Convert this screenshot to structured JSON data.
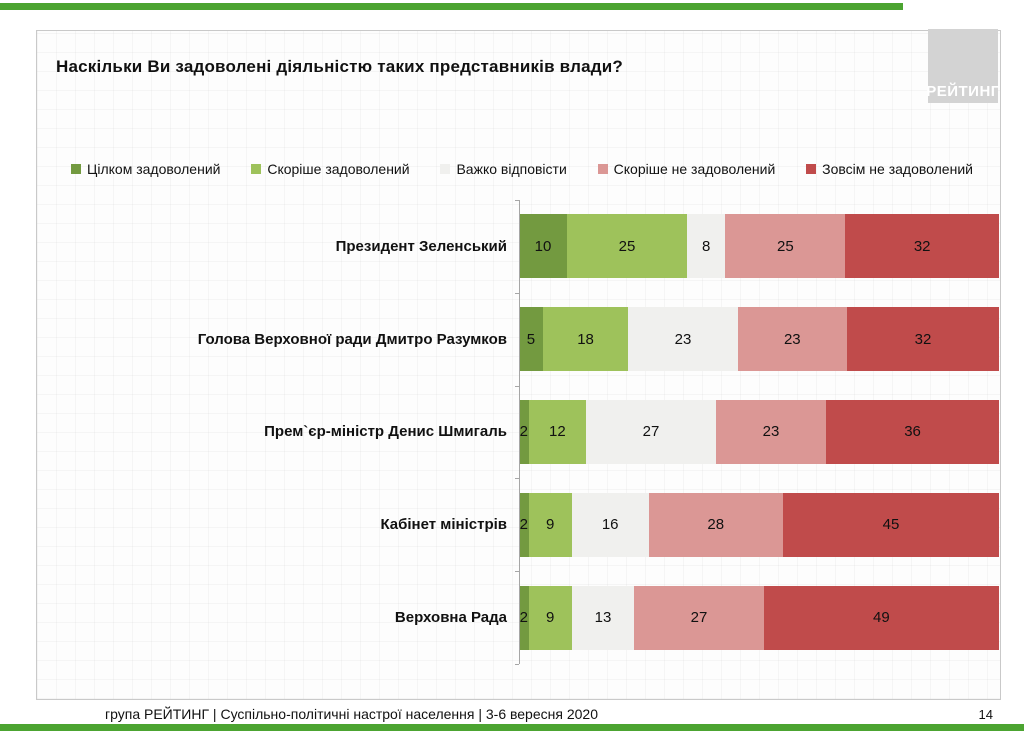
{
  "accent_color": "#4CA431",
  "logo": {
    "label": "РЕЙТИНГ",
    "bg": "#d3d3d3",
    "text_color": "#ffffff"
  },
  "title": "Наскільки Ви задоволені діяльністю таких представників влади?",
  "chart_data": {
    "type": "bar",
    "orientation": "horizontal",
    "stacked": true,
    "title": "Наскільки Ви задоволені діяльністю таких представників влади?",
    "legend_position": "top",
    "xlim": [
      0,
      100
    ],
    "value_labels": true,
    "categories": [
      "Президент Зеленський",
      "Голова Верховної ради Дмитро Разумков",
      "Прем`єр-міністр Денис Шмигаль",
      "Кабінет міністрів",
      "Верховна Рада"
    ],
    "series": [
      {
        "name": "Цілком задоволений",
        "color": "#739A40",
        "values": [
          10,
          5,
          2,
          2,
          2
        ]
      },
      {
        "name": "Скоріше задоволений",
        "color": "#9EC25B",
        "values": [
          25,
          18,
          12,
          9,
          9
        ]
      },
      {
        "name": "Важко відповісти",
        "color": "#F0F0EE",
        "values": [
          8,
          23,
          27,
          16,
          13
        ]
      },
      {
        "name": "Скоріше не задоволений",
        "color": "#DB9795",
        "values": [
          25,
          23,
          23,
          28,
          27
        ]
      },
      {
        "name": "Зовсім не задоволений",
        "color": "#C04B4B",
        "values": [
          32,
          32,
          36,
          45,
          49
        ]
      }
    ]
  },
  "footer": {
    "text": "група РЕЙТИНГ |  Суспільно-політичні настрої населення  | 3-6 вересня  2020",
    "page_number": "14"
  }
}
